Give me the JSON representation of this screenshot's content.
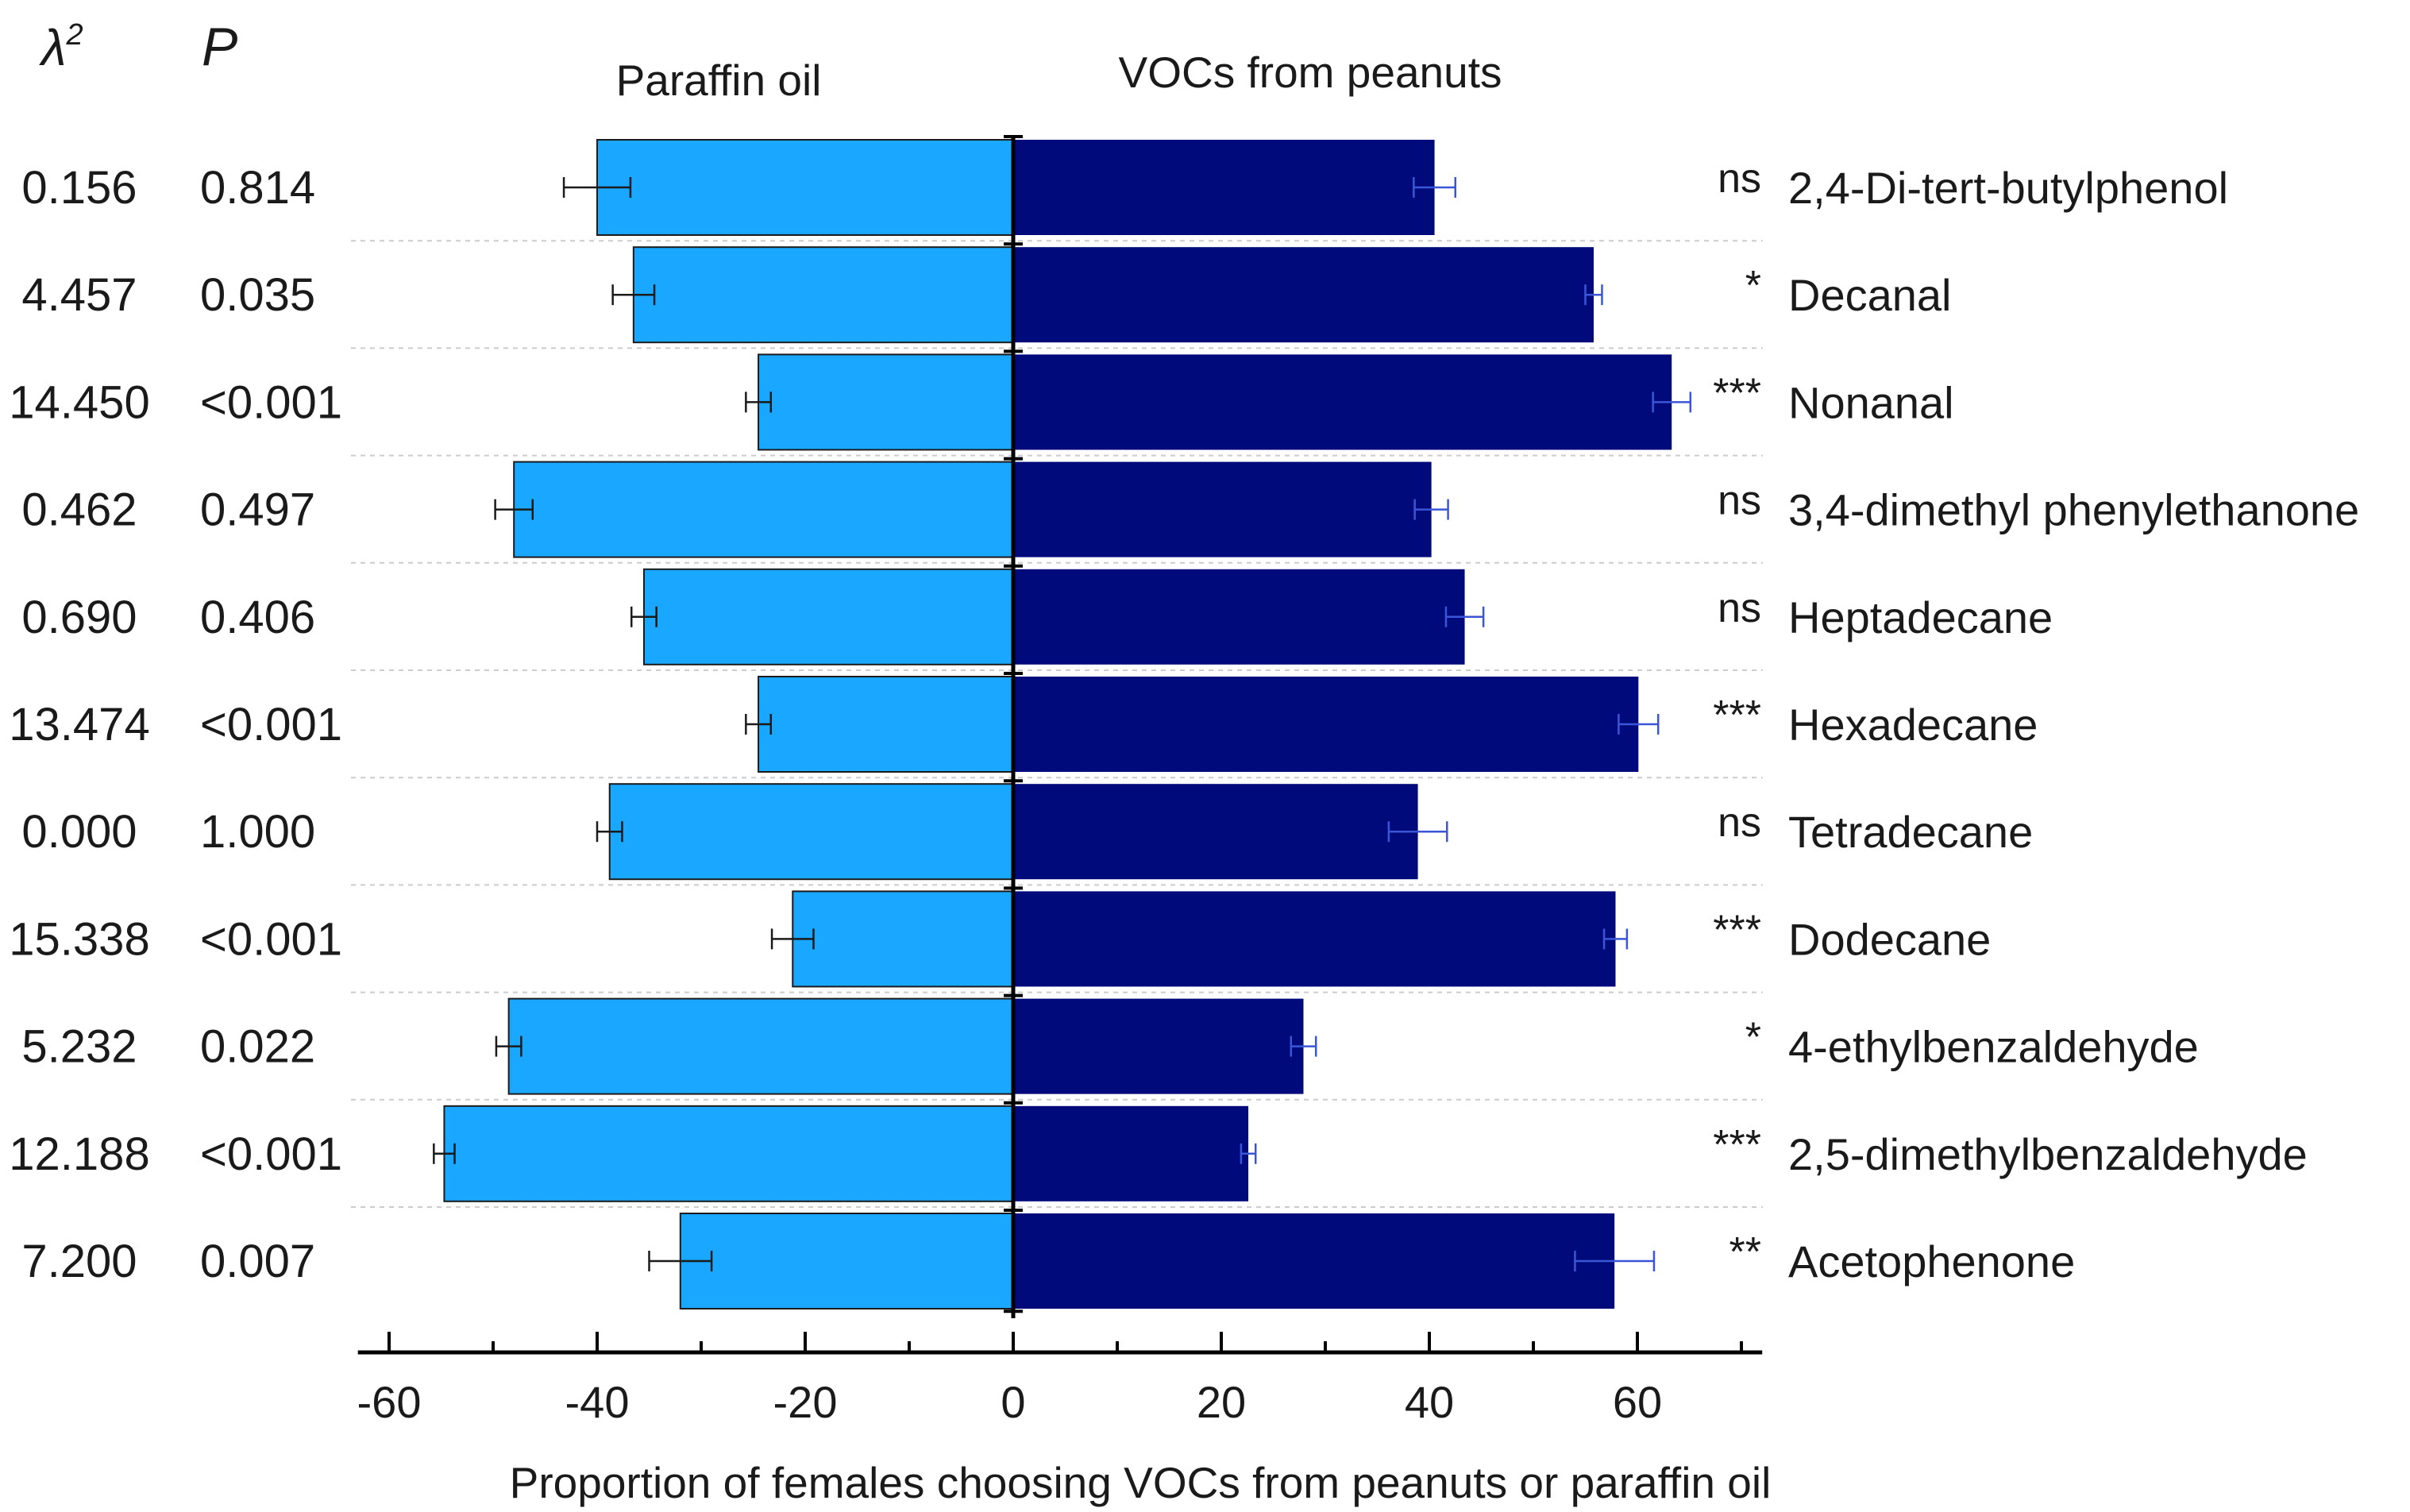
{
  "chart_data": {
    "type": "bar",
    "orientation": "horizontal-diverging",
    "xlabel": "Proportion of females choosing VOCs from peanuts or paraffin oil",
    "xlim": [
      -63,
      72
    ],
    "xticks": [
      -60,
      -40,
      -20,
      0,
      20,
      40,
      60
    ],
    "grid": "dashed horizontal separators",
    "stat_headers": {
      "chi": "λ",
      "chi_sup": "2",
      "p": "P"
    },
    "series": [
      {
        "name": "Paraffin oil",
        "color": "#1aa7ff"
      },
      {
        "name": "VOCs from peanuts",
        "color": "#000a7a"
      }
    ],
    "categories": [
      "2,4-Di-tert-butylphenol",
      "Decanal",
      "Nonanal",
      "3,4-dimethyl phenylethanone",
      "Heptadecane",
      "Hexadecane",
      "Tetradecane",
      "Dodecane",
      "4-ethylbenzaldehyde",
      "2,5-dimethylbenzaldehyde",
      "Acetophenone"
    ],
    "paraffin_values": [
      -40,
      -36.5,
      -24.5,
      -48,
      -35.5,
      -24.5,
      -38.8,
      -21.2,
      -48.5,
      -54.7,
      -32
    ],
    "paraffin_errors": [
      3.2,
      2,
      1.2,
      1.8,
      1.2,
      1.2,
      1.2,
      2,
      1.2,
      1,
      3
    ],
    "voc_values": [
      40.5,
      55.8,
      63.3,
      40.2,
      43.4,
      60.1,
      38.9,
      57.9,
      27.9,
      22.6,
      57.8
    ],
    "voc_errors": [
      2,
      0.8,
      1.8,
      1.6,
      1.8,
      1.9,
      2.8,
      1.1,
      1.2,
      0.7,
      3.8
    ],
    "significance": [
      "ns",
      "*",
      "***",
      "ns",
      "ns",
      "***",
      "ns",
      "***",
      "*",
      "***",
      "**"
    ],
    "chi_square": [
      "0.156",
      "4.457",
      "14.450",
      "0.462",
      "0.690",
      "13.474",
      "0.000",
      "15.338",
      "5.232",
      "12.188",
      "7.200"
    ],
    "p_values": [
      "0.814",
      "0.035",
      "<0.001",
      "0.497",
      "0.406",
      "<0.001",
      "1.000",
      "<0.001",
      "0.022",
      "<0.001",
      "0.007"
    ]
  }
}
